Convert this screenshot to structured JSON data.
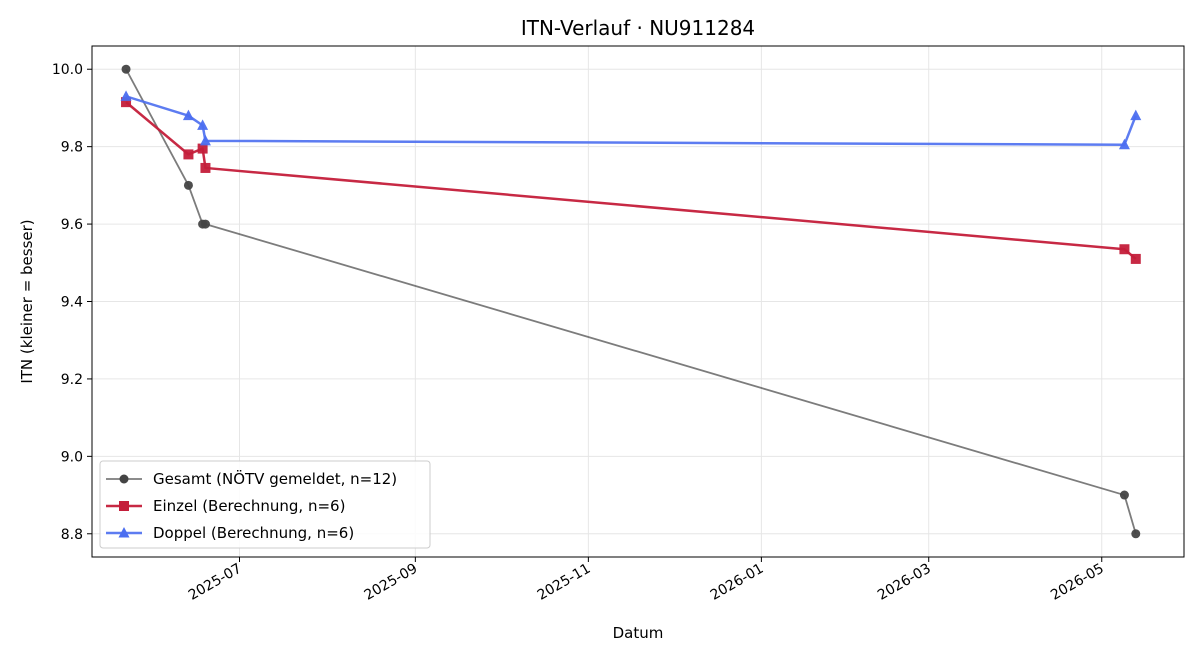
{
  "chart_data": {
    "type": "line",
    "title": "ITN-Verlauf · NU911284",
    "xlabel": "Datum",
    "ylabel": "ITN  (kleiner = besser)",
    "xlim": [
      "2025-05-10",
      "2026-05-30"
    ],
    "ylim": [
      8.74,
      10.06
    ],
    "x_ticks": [
      "2025-07-01",
      "2025-09-01",
      "2025-11-01",
      "2026-01-01",
      "2026-03-01",
      "2026-05-01"
    ],
    "x_tick_labels": [
      "2025-07",
      "2025-09",
      "2025-11",
      "2026-01",
      "2026-03",
      "2026-05"
    ],
    "y_ticks": [
      8.8,
      9.0,
      9.2,
      9.4,
      9.6,
      9.8,
      10.0
    ],
    "y_tick_labels": [
      "8.8",
      "9.0",
      "9.2",
      "9.4",
      "9.6",
      "9.8",
      "10.0"
    ],
    "grid": true,
    "legend_position": "bottom-left",
    "series": [
      {
        "name": "Gesamt (NÖTV gemeldet, n=12)",
        "color": "#444444",
        "marker": "circle",
        "points": [
          {
            "x": "2025-05-22",
            "y": 10.0
          },
          {
            "x": "2025-06-13",
            "y": 9.7
          },
          {
            "x": "2025-06-18",
            "y": 9.6
          },
          {
            "x": "2025-06-19",
            "y": 9.6
          },
          {
            "x": "2026-05-09",
            "y": 8.9
          },
          {
            "x": "2026-05-13",
            "y": 8.8
          }
        ]
      },
      {
        "name": "Einzel (Berechnung, n=6)",
        "color": "#c41e3a",
        "marker": "square",
        "points": [
          {
            "x": "2025-05-22",
            "y": 9.915
          },
          {
            "x": "2025-06-13",
            "y": 9.78
          },
          {
            "x": "2025-06-18",
            "y": 9.795
          },
          {
            "x": "2025-06-19",
            "y": 9.745
          },
          {
            "x": "2026-05-09",
            "y": 9.535
          },
          {
            "x": "2026-05-13",
            "y": 9.51
          }
        ]
      },
      {
        "name": "Doppel (Berechnung, n=6)",
        "color": "#4b6ef0",
        "marker": "triangle",
        "points": [
          {
            "x": "2025-05-22",
            "y": 9.93
          },
          {
            "x": "2025-06-13",
            "y": 9.88
          },
          {
            "x": "2025-06-18",
            "y": 9.855
          },
          {
            "x": "2025-06-19",
            "y": 9.815
          },
          {
            "x": "2026-05-09",
            "y": 9.805
          },
          {
            "x": "2026-05-13",
            "y": 9.88
          }
        ]
      }
    ]
  }
}
